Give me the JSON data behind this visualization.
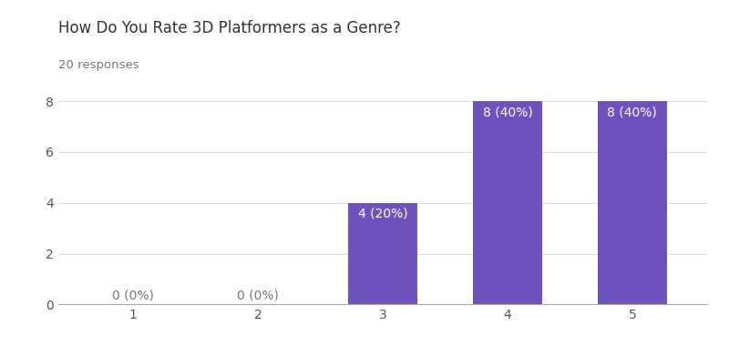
{
  "title": "How Do You Rate 3D Platformers as a Genre?",
  "subtitle": "20 responses",
  "categories": [
    1,
    2,
    3,
    4,
    5
  ],
  "values": [
    0,
    0,
    4,
    8,
    8
  ],
  "percentages": [
    0,
    0,
    20,
    40,
    40
  ],
  "bar_color": "#7052be",
  "bar_labels_color_inside": "#ffffff",
  "bar_labels_color_outside": "#777777",
  "title_fontsize": 12,
  "subtitle_fontsize": 9.5,
  "tick_label_fontsize": 10,
  "bar_label_fontsize": 10,
  "ytick_label_fontsize": 10,
  "ylim": [
    0,
    9
  ],
  "yticks": [
    0,
    2,
    4,
    6,
    8
  ],
  "background_color": "#ffffff",
  "grid_color": "#e0e0e0",
  "title_color": "#333333",
  "subtitle_color": "#777777",
  "axis_label_color": "#555555",
  "bar_width": 0.55
}
